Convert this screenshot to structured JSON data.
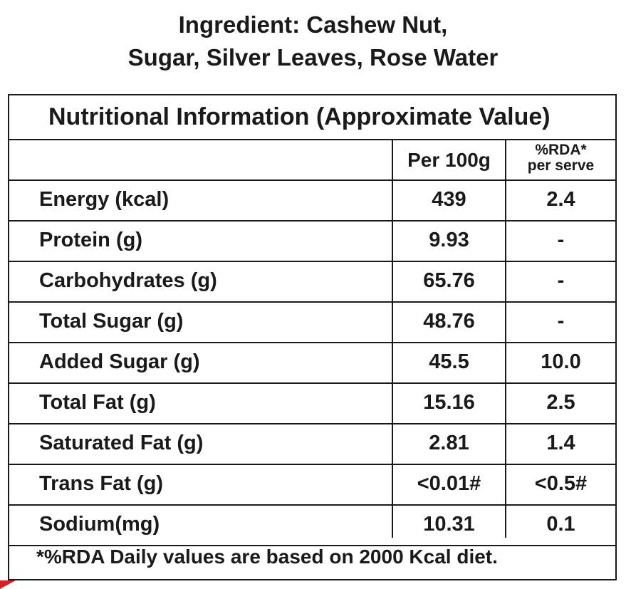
{
  "ingredients": {
    "line1": "Ingredient: Cashew Nut,",
    "line2": "Sugar, Silver Leaves, Rose Water"
  },
  "table": {
    "title": "Nutritional Information (Approximate Value)",
    "headers": {
      "per100": "Per 100g",
      "rda_line1": "%RDA*",
      "rda_line2": "per serve"
    },
    "rows": [
      {
        "nutrient": "Energy (kcal)",
        "per100": "439",
        "rda": "2.4"
      },
      {
        "nutrient": "Protein (g)",
        "per100": "9.93",
        "rda": "-"
      },
      {
        "nutrient": "Carbohydrates (g)",
        "per100": "65.76",
        "rda": "-"
      },
      {
        "nutrient": "Total Sugar (g)",
        "per100": "48.76",
        "rda": "-"
      },
      {
        "nutrient": "Added Sugar (g)",
        "per100": "45.5",
        "rda": "10.0"
      },
      {
        "nutrient": "Total Fat (g)",
        "per100": "15.16",
        "rda": "2.5"
      },
      {
        "nutrient": "Saturated Fat (g)",
        "per100": "2.81",
        "rda": "1.4"
      },
      {
        "nutrient": "Trans Fat (g)",
        "per100": "<0.01#",
        "rda": "<0.5#"
      },
      {
        "nutrient": "Sodium(mg)",
        "per100": "10.31",
        "rda": "0.1"
      }
    ],
    "footnote": "*%RDA Daily values are based on 2000 Kcal diet."
  },
  "colors": {
    "text": "#1a1a1a",
    "border": "#1a1a1a",
    "accent": "#d42027"
  }
}
